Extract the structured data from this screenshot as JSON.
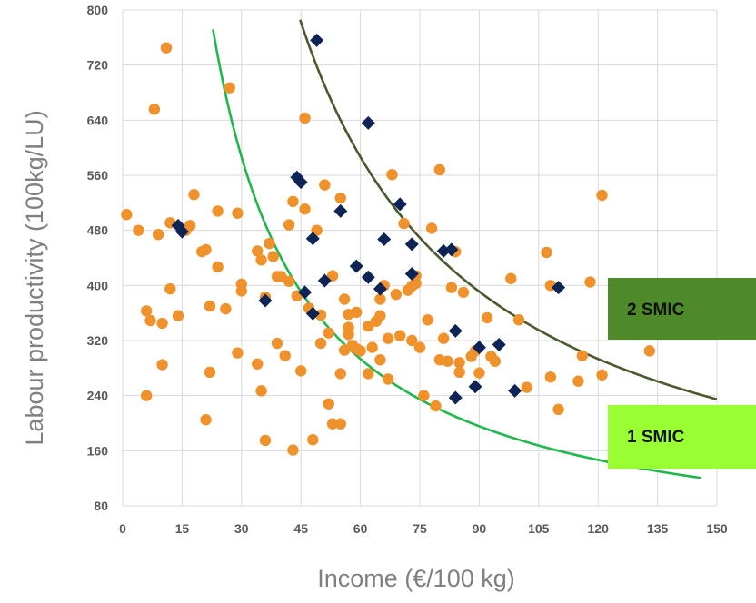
{
  "chart_data": {
    "type": "scatter",
    "title": "",
    "xlabel": "Income  (€/100 kg)",
    "ylabel": "Labour productivity (100kg/LU)",
    "xlim": [
      0,
      150
    ],
    "ylim": [
      80,
      800
    ],
    "x_ticks": [
      "0",
      "15",
      "30",
      "45",
      "60",
      "75",
      "90",
      "105",
      "120",
      "135",
      "150"
    ],
    "y_ticks": [
      "80",
      "160",
      "240",
      "320",
      "400",
      "480",
      "560",
      "640",
      "720",
      "800"
    ],
    "grid": true,
    "series": [
      {
        "marker": "circle",
        "color": "#f0922b",
        "points": [
          [
            1,
            503
          ],
          [
            4,
            480
          ],
          [
            6,
            363
          ],
          [
            6,
            240
          ],
          [
            7,
            349
          ],
          [
            8,
            656
          ],
          [
            9,
            474
          ],
          [
            10,
            285
          ],
          [
            10,
            345
          ],
          [
            11,
            745
          ],
          [
            12,
            491
          ],
          [
            12,
            395
          ],
          [
            14,
            356
          ],
          [
            16,
            480
          ],
          [
            17,
            487
          ],
          [
            18,
            532
          ],
          [
            20,
            449
          ],
          [
            21,
            452
          ],
          [
            21,
            205
          ],
          [
            22,
            274
          ],
          [
            22,
            370
          ],
          [
            24,
            427
          ],
          [
            24,
            508
          ],
          [
            26,
            366
          ],
          [
            27,
            687
          ],
          [
            29,
            505
          ],
          [
            29,
            302
          ],
          [
            30,
            402
          ],
          [
            30,
            392
          ],
          [
            34,
            450
          ],
          [
            34,
            286
          ],
          [
            35,
            437
          ],
          [
            35,
            247
          ],
          [
            36,
            383
          ],
          [
            36,
            175
          ],
          [
            37,
            461
          ],
          [
            38,
            442
          ],
          [
            39,
            316
          ],
          [
            39,
            413
          ],
          [
            40,
            413
          ],
          [
            41,
            298
          ],
          [
            42,
            488
          ],
          [
            42,
            406
          ],
          [
            43,
            522
          ],
          [
            43,
            161
          ],
          [
            44,
            385
          ],
          [
            45,
            276
          ],
          [
            46,
            511
          ],
          [
            46,
            643
          ],
          [
            47,
            367
          ],
          [
            48,
            176
          ],
          [
            49,
            480
          ],
          [
            50,
            357
          ],
          [
            50,
            316
          ],
          [
            51,
            546
          ],
          [
            52,
            228
          ],
          [
            52,
            331
          ],
          [
            53,
            199
          ],
          [
            53,
            414
          ],
          [
            55,
            272
          ],
          [
            55,
            527
          ],
          [
            55,
            199
          ],
          [
            56,
            380
          ],
          [
            56,
            306
          ],
          [
            57,
            358
          ],
          [
            57,
            339
          ],
          [
            57,
            329
          ],
          [
            58,
            313
          ],
          [
            59,
            361
          ],
          [
            59,
            308
          ],
          [
            60,
            305
          ],
          [
            62,
            341
          ],
          [
            62,
            272
          ],
          [
            63,
            310
          ],
          [
            64,
            348
          ],
          [
            65,
            356
          ],
          [
            65,
            292
          ],
          [
            65,
            380
          ],
          [
            66,
            400
          ],
          [
            67,
            264
          ],
          [
            67,
            323
          ],
          [
            68,
            561
          ],
          [
            69,
            387
          ],
          [
            70,
            327
          ],
          [
            71,
            490
          ],
          [
            72,
            393
          ],
          [
            73,
            320
          ],
          [
            73,
            399
          ],
          [
            74,
            414
          ],
          [
            74,
            403
          ],
          [
            75,
            310
          ],
          [
            76,
            240
          ],
          [
            77,
            350
          ],
          [
            78,
            483
          ],
          [
            79,
            225
          ],
          [
            80,
            568
          ],
          [
            80,
            292
          ],
          [
            81,
            323
          ],
          [
            82,
            290
          ],
          [
            83,
            397
          ],
          [
            84,
            449
          ],
          [
            85,
            274
          ],
          [
            85,
            288
          ],
          [
            86,
            390
          ],
          [
            88,
            297
          ],
          [
            89,
            305
          ],
          [
            90,
            273
          ],
          [
            92,
            353
          ],
          [
            93,
            297
          ],
          [
            94,
            290
          ],
          [
            98,
            410
          ],
          [
            100,
            350
          ],
          [
            102,
            252
          ],
          [
            107,
            448
          ],
          [
            108,
            400
          ],
          [
            108,
            267
          ],
          [
            110,
            220
          ],
          [
            115,
            261
          ],
          [
            116,
            298
          ],
          [
            118,
            405
          ],
          [
            121,
            531
          ],
          [
            121,
            270
          ],
          [
            133,
            305
          ]
        ]
      },
      {
        "marker": "diamond",
        "color": "#0d2454",
        "points": [
          [
            14,
            487
          ],
          [
            15,
            478
          ],
          [
            36,
            378
          ],
          [
            44,
            557
          ],
          [
            45,
            550
          ],
          [
            46,
            390
          ],
          [
            48,
            359
          ],
          [
            48,
            468
          ],
          [
            49,
            756
          ],
          [
            51,
            407
          ],
          [
            55,
            508
          ],
          [
            59,
            428
          ],
          [
            62,
            412
          ],
          [
            62,
            636
          ],
          [
            65,
            395
          ],
          [
            66,
            467
          ],
          [
            70,
            518
          ],
          [
            73,
            460
          ],
          [
            73,
            417
          ],
          [
            81,
            450
          ],
          [
            83,
            452
          ],
          [
            84,
            237
          ],
          [
            84,
            334
          ],
          [
            89,
            253
          ],
          [
            90,
            310
          ],
          [
            95,
            314
          ],
          [
            99,
            247
          ],
          [
            110,
            397
          ]
        ]
      }
    ],
    "curves": [
      {
        "color": "#1fb84b",
        "x_range": [
          22.8,
          146
        ],
        "k": 17600,
        "label": "1 SMIC"
      },
      {
        "color": "#4a5a2e",
        "x_range": [
          44.8,
          150
        ],
        "k": 35200,
        "label": "2 SMIC"
      }
    ],
    "annotations": {
      "smic1": {
        "text": "1 SMIC",
        "color": "#99ff33"
      },
      "smic2": {
        "text": "2 SMIC",
        "color": "#4e8a2a"
      }
    }
  }
}
